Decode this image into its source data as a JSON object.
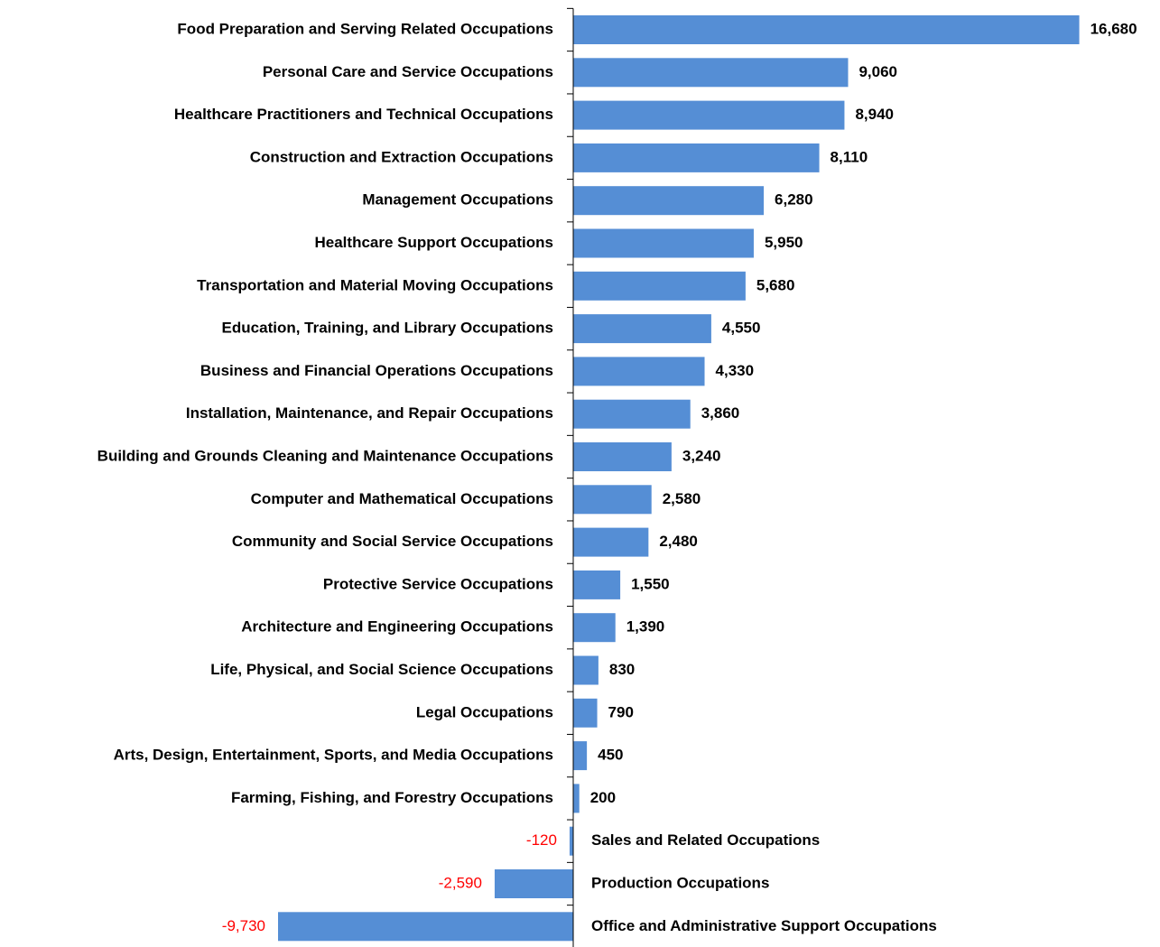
{
  "chart_data": {
    "type": "bar",
    "orientation": "horizontal",
    "categories": [
      "Food Preparation and Serving Related Occupations",
      "Personal Care and Service Occupations",
      "Healthcare Practitioners and Technical Occupations",
      "Construction and Extraction Occupations",
      "Management Occupations",
      "Healthcare Support Occupations",
      "Transportation and Material Moving Occupations",
      "Education, Training, and Library Occupations",
      "Business and Financial Operations Occupations",
      "Installation, Maintenance, and Repair Occupations",
      "Building and Grounds Cleaning and Maintenance Occupations",
      "Computer and Mathematical Occupations",
      "Community and Social Service Occupations",
      "Protective Service Occupations",
      "Architecture and Engineering Occupations",
      "Life, Physical, and Social Science Occupations",
      "Legal Occupations",
      "Arts, Design, Entertainment, Sports, and Media Occupations",
      "Farming, Fishing, and Forestry Occupations",
      "Sales and Related Occupations",
      "Production Occupations",
      "Office and Administrative Support Occupations"
    ],
    "values": [
      16680,
      9060,
      8940,
      8110,
      6280,
      5950,
      5680,
      4550,
      4330,
      3860,
      3240,
      2580,
      2480,
      1550,
      1390,
      830,
      790,
      450,
      200,
      -120,
      -2590,
      -9730
    ],
    "value_labels": [
      "16,680",
      "9,060",
      "8,940",
      "8,110",
      "6,280",
      "5,950",
      "5,680",
      "4,550",
      "4,330",
      "3,860",
      "3,240",
      "2,580",
      "2,480",
      "1,550",
      "1,390",
      "830",
      "790",
      "450",
      "200",
      "-120",
      "-2,590",
      "-9,730"
    ],
    "color": "#558ed5",
    "negative_label_color": "#ff0000"
  }
}
